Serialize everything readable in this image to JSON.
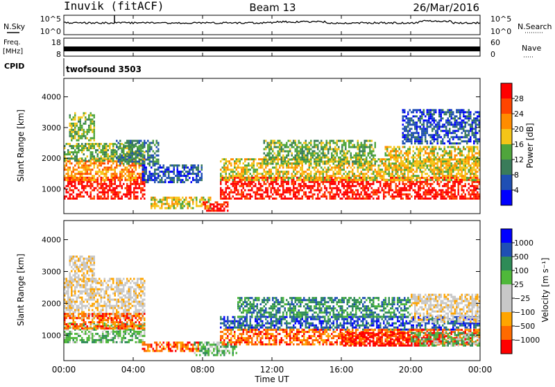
{
  "header": {
    "station": "Inuvik (fitACF)",
    "beam": "Beam 13",
    "date": "26/Mar/2016"
  },
  "top_panels": {
    "nsky": {
      "label": "N.Sky",
      "ticks": [
        "10^5",
        "10^0"
      ]
    },
    "nsearch": {
      "label": "N.Search",
      "ticks": [
        "10^5",
        "10^0"
      ]
    },
    "freq": {
      "label_line1": "Freq.",
      "label_line2": "[MHz]",
      "ticks": [
        "18",
        "8"
      ]
    },
    "nave": {
      "label": "Nave",
      "ticks": [
        "60",
        "0"
      ]
    },
    "cpid": {
      "label": "CPID",
      "program": "twofsound 3503"
    }
  },
  "chart_data": {
    "type": "heatmap",
    "x": {
      "label": "Time UT",
      "range_hours": [
        0,
        24
      ],
      "ticks": [
        {
          "hour": 0,
          "label": "00:00"
        },
        {
          "hour": 4,
          "label": "04:00"
        },
        {
          "hour": 8,
          "label": "08:00"
        },
        {
          "hour": 12,
          "label": "12:00"
        },
        {
          "hour": 16,
          "label": "16:00"
        },
        {
          "hour": 20,
          "label": "20:00"
        },
        {
          "hour": 24,
          "label": "00:00"
        }
      ]
    },
    "y": {
      "label": "Slant Range [km]",
      "range_km": [
        200,
        4600
      ],
      "ticks": [
        {
          "km": 1000,
          "label": "1000"
        },
        {
          "km": 2000,
          "label": "2000"
        },
        {
          "km": 3000,
          "label": "3000"
        },
        {
          "km": 4000,
          "label": "4000"
        }
      ]
    },
    "panels": [
      {
        "name": "power",
        "colorbar_label": "Power [dB]",
        "colors": [
          "#0000ff",
          "#1f4fb4",
          "#3a7c5a",
          "#4fa53c",
          "#f5c518",
          "#ff8c00",
          "#ff4500",
          "#ff0000"
        ],
        "colorbar_ticks": [
          "28",
          "24",
          "20",
          "16",
          "12",
          "8",
          "4"
        ],
        "scatter_regions": [
          {
            "t0": 0.0,
            "t1": 4.7,
            "r0": 700,
            "r1": 1400,
            "level": 7
          },
          {
            "t0": 0.0,
            "t1": 4.7,
            "r0": 1300,
            "r1": 2000,
            "level": 5
          },
          {
            "t0": 0.0,
            "t1": 4.7,
            "r0": 1900,
            "r1": 2500,
            "level": 3
          },
          {
            "t0": 0.3,
            "t1": 1.8,
            "r0": 2600,
            "r1": 3500,
            "level": 3
          },
          {
            "t0": 3.0,
            "t1": 5.5,
            "r0": 1800,
            "r1": 2600,
            "level": 2
          },
          {
            "t0": 4.5,
            "t1": 8.0,
            "r0": 1200,
            "r1": 1800,
            "level": 1
          },
          {
            "t0": 5.0,
            "t1": 8.5,
            "r0": 350,
            "r1": 750,
            "level": 4
          },
          {
            "t0": 8.0,
            "t1": 9.5,
            "r0": 300,
            "r1": 600,
            "level": 7
          },
          {
            "t0": 9.0,
            "t1": 24.0,
            "r0": 700,
            "r1": 1400,
            "level": 7
          },
          {
            "t0": 9.0,
            "t1": 24.0,
            "r0": 1300,
            "r1": 2000,
            "level": 4
          },
          {
            "t0": 11.5,
            "t1": 18.0,
            "r0": 1800,
            "r1": 2600,
            "level": 3
          },
          {
            "t0": 18.5,
            "t1": 24.0,
            "r0": 1600,
            "r1": 2400,
            "level": 4
          },
          {
            "t0": 19.5,
            "t1": 24.0,
            "r0": 2500,
            "r1": 3600,
            "level": 1
          }
        ]
      },
      {
        "name": "velocity",
        "colorbar_label": "Velocity [m s⁻¹]",
        "colors": [
          "#ff0000",
          "#ff6a00",
          "#ffa500",
          "#c8c8c8",
          "#c8c8c8",
          "#4fb83a",
          "#2e8b57",
          "#1f4fb4",
          "#0000ff"
        ],
        "colorbar_ticks": [
          "1000",
          "500",
          "100",
          "25",
          "−25",
          "−100",
          "−500",
          "−1000"
        ],
        "scatter_regions": [
          {
            "t0": 0.0,
            "t1": 4.7,
            "r0": 1500,
            "r1": 2800,
            "level": 3
          },
          {
            "t0": 0.0,
            "t1": 4.7,
            "r0": 800,
            "r1": 1400,
            "level": 5
          },
          {
            "t0": 0.0,
            "t1": 4.7,
            "r0": 1200,
            "r1": 1700,
            "level": 1
          },
          {
            "t0": 0.3,
            "t1": 1.8,
            "r0": 2700,
            "r1": 3500,
            "level": 3
          },
          {
            "t0": 4.5,
            "t1": 8.0,
            "r0": 500,
            "r1": 800,
            "level": 1
          },
          {
            "t0": 7.5,
            "t1": 10.0,
            "r0": 350,
            "r1": 800,
            "level": 5
          },
          {
            "t0": 9.0,
            "t1": 24.0,
            "r0": 1200,
            "r1": 1600,
            "level": 7
          },
          {
            "t0": 9.0,
            "t1": 24.0,
            "r0": 700,
            "r1": 1200,
            "level": 1
          },
          {
            "t0": 10.0,
            "t1": 20.0,
            "r0": 1600,
            "r1": 2200,
            "level": 6
          },
          {
            "t0": 16.0,
            "t1": 22.0,
            "r0": 700,
            "r1": 1100,
            "level": 0
          },
          {
            "t0": 20.0,
            "t1": 24.0,
            "r0": 1400,
            "r1": 2300,
            "level": 3
          },
          {
            "t0": 20.0,
            "t1": 24.0,
            "r0": 700,
            "r1": 1100,
            "level": 5
          }
        ]
      }
    ]
  }
}
